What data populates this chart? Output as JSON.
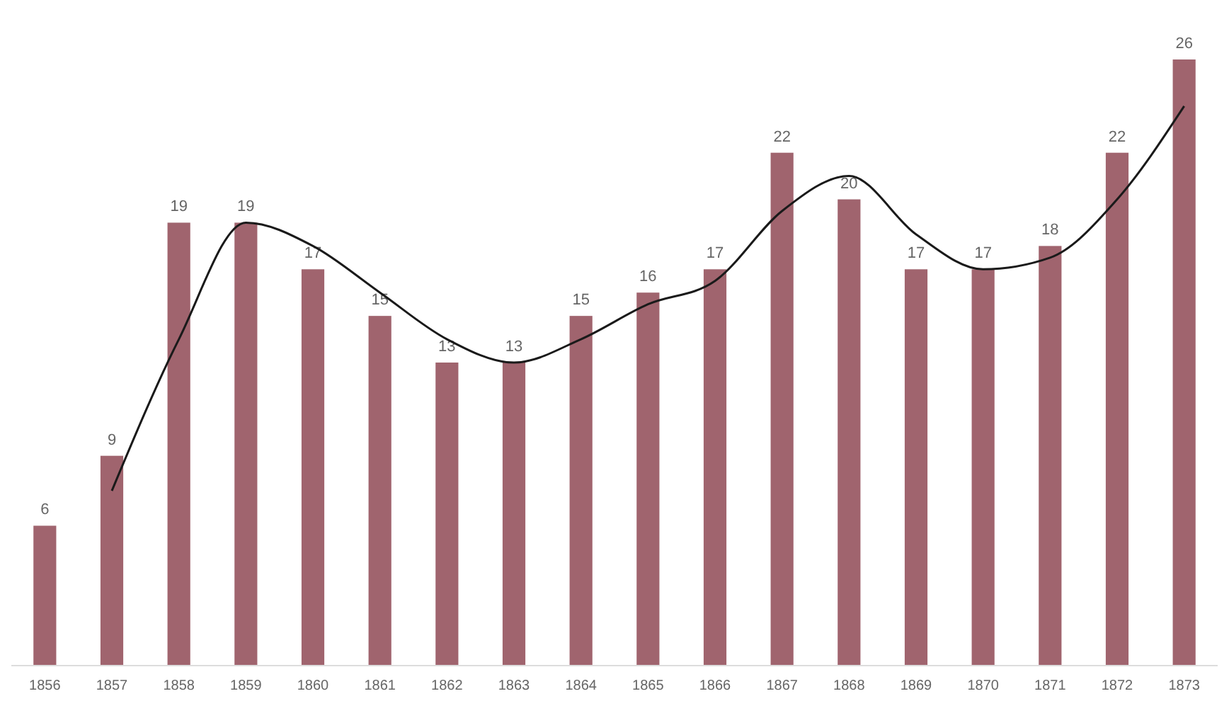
{
  "chart_data": {
    "type": "bar",
    "categories": [
      "1856",
      "1857",
      "1858",
      "1859",
      "1860",
      "1861",
      "1862",
      "1863",
      "1864",
      "1865",
      "1866",
      "1867",
      "1868",
      "1869",
      "1870",
      "1871",
      "1872",
      "1873"
    ],
    "series": [
      {
        "color": "#a0646e",
        "values": [
          6,
          9,
          19,
          19,
          17,
          15,
          13,
          13,
          15,
          16,
          17,
          22,
          20,
          17,
          17,
          18,
          22,
          26
        ],
        "value_labels": [
          "6",
          "9",
          "19",
          "19",
          "17",
          "15",
          "13",
          "13",
          "15",
          "16",
          "17",
          "22",
          "20",
          "17",
          "17",
          "18",
          "22",
          "26"
        ]
      },
      {
        "type": "line",
        "color": "#1a1a1a",
        "values": [
          null,
          7.5,
          14,
          19,
          18,
          16,
          14,
          13,
          14,
          15.5,
          16.5,
          19.5,
          21,
          18.5,
          17,
          17.5,
          20,
          24
        ]
      }
    ]
  }
}
